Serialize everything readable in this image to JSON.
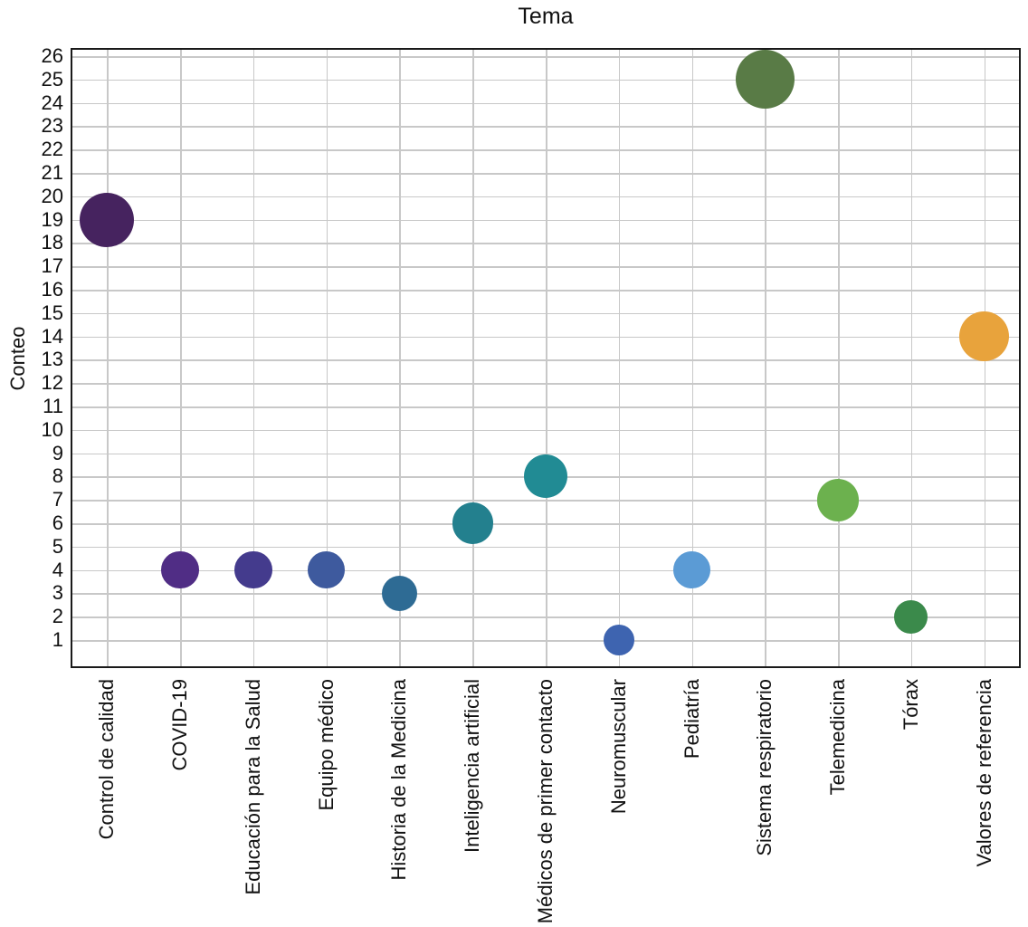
{
  "chart_data": {
    "type": "scatter",
    "subtype": "bubble",
    "title": "Tema",
    "xlabel": "",
    "ylabel": "Conteo",
    "categories": [
      "Control de calidad",
      "COVID-19",
      "Educación para la Salud",
      "Equipo médico",
      "Historia de la Medicina",
      "Inteligencia artificial",
      "Médicos de primer contacto",
      "Neuromuscular",
      "Pediatría",
      "Sistema respiratorio",
      "Telemedicina",
      "Tórax",
      "Valores de referencia"
    ],
    "values": [
      19,
      4,
      4,
      4,
      3,
      6,
      8,
      1,
      4,
      25,
      7,
      2,
      14
    ],
    "point_colors": [
      "#46235f",
      "#502d85",
      "#443b8d",
      "#3e5a9e",
      "#2e6b94",
      "#23808e",
      "#218b94",
      "#3e64b0",
      "#5b9bd5",
      "#597b46",
      "#6cb14e",
      "#3b8a4b",
      "#e8a33c"
    ],
    "yticks": [
      1,
      2,
      3,
      4,
      5,
      6,
      7,
      8,
      9,
      10,
      11,
      12,
      13,
      14,
      15,
      16,
      17,
      18,
      19,
      20,
      21,
      22,
      23,
      24,
      25,
      26
    ],
    "ylim": [
      -0.2,
      26.35
    ],
    "grid": true,
    "legend": "none",
    "bubble_size_px": {
      "base": 13,
      "per_sqrt_value": 3.9
    },
    "axis_color": "#1a1a1a",
    "grid_color": "#c8c8c8",
    "text_color": "#111111",
    "background": "#ffffff"
  }
}
